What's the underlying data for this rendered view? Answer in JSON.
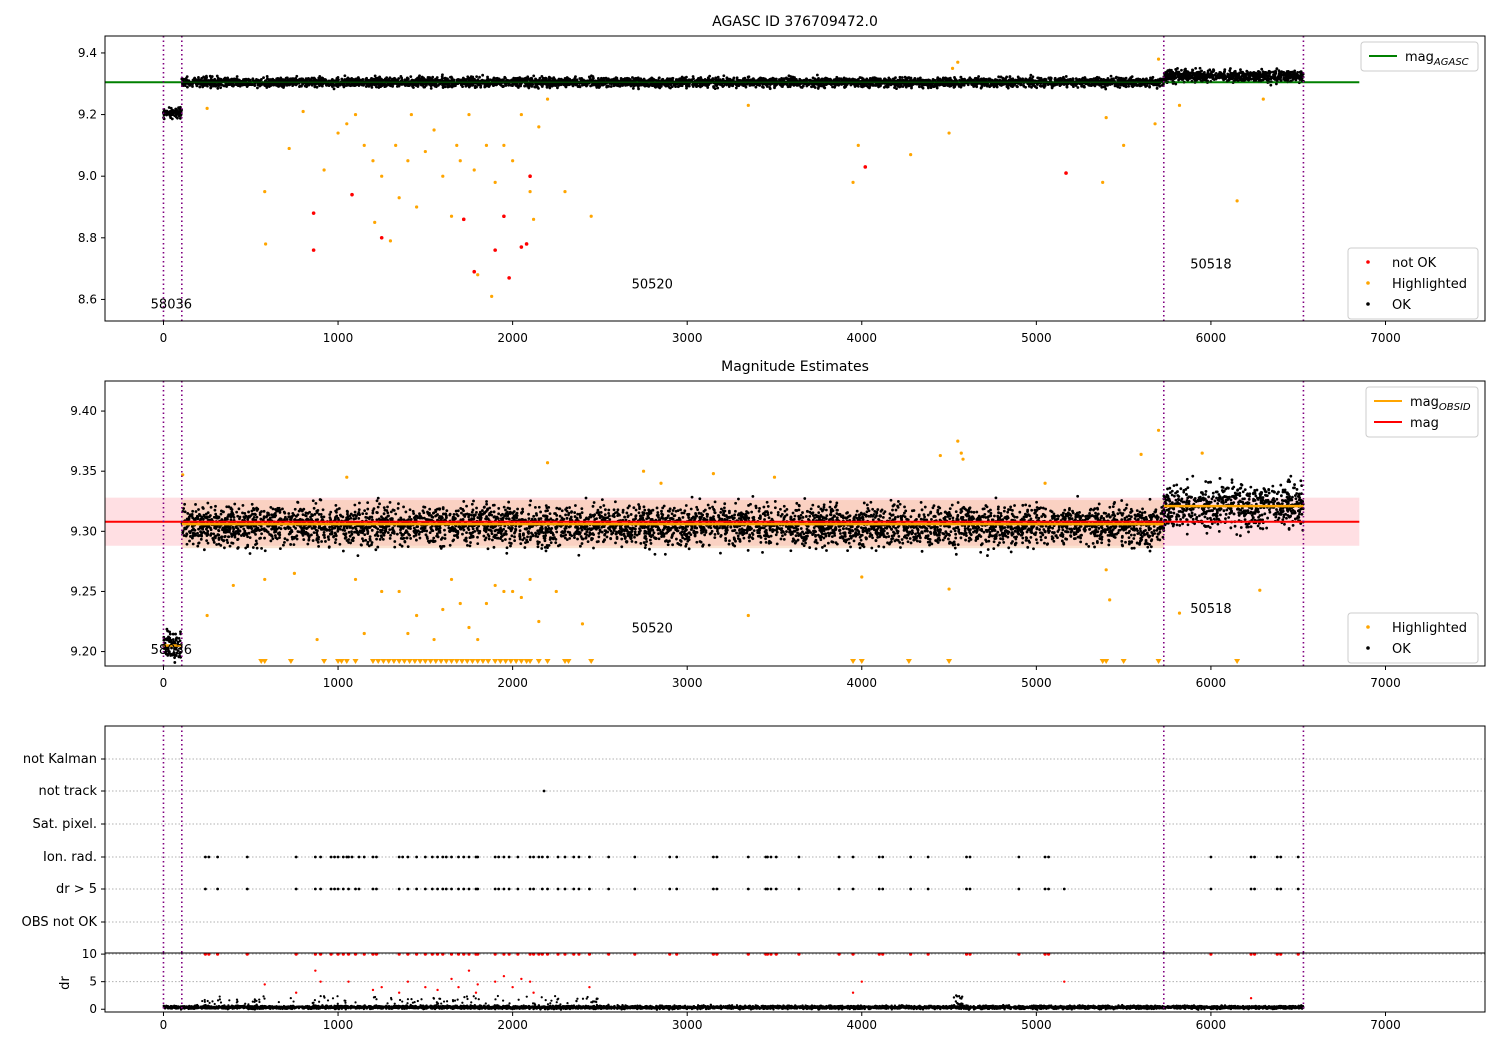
{
  "chart_data": [
    {
      "type": "scatter",
      "title": "AGASC ID 376709472.0",
      "xlabel": "",
      "ylabel": "",
      "xlim": [
        -335,
        7570
      ],
      "ylim": [
        8.53,
        9.455
      ],
      "xticks": [
        0,
        1000,
        2000,
        3000,
        4000,
        5000,
        6000,
        7000
      ],
      "yticks": [
        8.6,
        8.8,
        9.0,
        9.2,
        9.4
      ],
      "ytick_labels": [
        "8.6",
        "8.8",
        "9.0",
        "9.2",
        "9.4"
      ],
      "obsid_boundaries": [
        0,
        105,
        5730,
        6530
      ],
      "obsid_labels": [
        {
          "text": "58036",
          "x": 45,
          "y": 8.57
        },
        {
          "text": "50520",
          "x": 2800,
          "y": 8.635
        },
        {
          "text": "50518",
          "x": 6000,
          "y": 8.7
        }
      ],
      "reference_lines": [
        {
          "name": "mag_AGASC",
          "y": 9.305,
          "x0": -335,
          "x1": 6850,
          "color": "#008000"
        }
      ],
      "legend": {
        "position": "top-right",
        "entries": [
          {
            "label": "mag",
            "sub": "AGASC",
            "color": "#008000",
            "kind": "line"
          }
        ]
      },
      "legend2": {
        "position": "bottom-right",
        "entries": [
          {
            "label": "not OK",
            "color": "#ff0000",
            "kind": "dot"
          },
          {
            "label": "Highlighted",
            "color": "#ffa500",
            "kind": "dot"
          },
          {
            "label": "OK",
            "color": "#000000",
            "kind": "dot"
          }
        ]
      },
      "ok_series": {
        "name": "OK",
        "color": "#000000",
        "segments": [
          {
            "x0": 0,
            "x1": 105,
            "center": 9.205,
            "spread": 0.012
          },
          {
            "x0": 105,
            "x1": 5730,
            "center": 9.305,
            "spread": 0.013
          },
          {
            "x0": 5730,
            "x1": 6530,
            "center": 9.325,
            "spread": 0.016
          }
        ]
      },
      "highlighted_points": [
        [
          250,
          9.22
        ],
        [
          580,
          8.95
        ],
        [
          585,
          8.78
        ],
        [
          720,
          9.09
        ],
        [
          800,
          9.21
        ],
        [
          920,
          9.02
        ],
        [
          1000,
          9.14
        ],
        [
          1050,
          9.17
        ],
        [
          1100,
          9.2
        ],
        [
          1150,
          9.1
        ],
        [
          1200,
          9.05
        ],
        [
          1210,
          8.85
        ],
        [
          1250,
          9.0
        ],
        [
          1300,
          8.79
        ],
        [
          1330,
          9.1
        ],
        [
          1350,
          8.93
        ],
        [
          1400,
          9.05
        ],
        [
          1420,
          9.2
        ],
        [
          1450,
          8.9
        ],
        [
          1500,
          9.08
        ],
        [
          1550,
          9.15
        ],
        [
          1600,
          9.0
        ],
        [
          1650,
          8.87
        ],
        [
          1680,
          9.1
        ],
        [
          1700,
          9.05
        ],
        [
          1750,
          9.2
        ],
        [
          1780,
          9.02
        ],
        [
          1800,
          8.68
        ],
        [
          1850,
          9.1
        ],
        [
          1880,
          8.61
        ],
        [
          1900,
          8.98
        ],
        [
          1950,
          9.1
        ],
        [
          2000,
          9.05
        ],
        [
          2050,
          9.2
        ],
        [
          2100,
          8.95
        ],
        [
          2120,
          8.86
        ],
        [
          2150,
          9.16
        ],
        [
          2200,
          9.25
        ],
        [
          2300,
          8.95
        ],
        [
          2450,
          8.87
        ],
        [
          3350,
          9.23
        ],
        [
          3950,
          8.98
        ],
        [
          3980,
          9.1
        ],
        [
          4280,
          9.07
        ],
        [
          4500,
          9.14
        ],
        [
          4520,
          9.35
        ],
        [
          4550,
          9.37
        ],
        [
          5380,
          8.98
        ],
        [
          5400,
          9.19
        ],
        [
          5500,
          9.1
        ],
        [
          5680,
          9.17
        ],
        [
          5700,
          9.38
        ],
        [
          5820,
          9.23
        ],
        [
          6150,
          8.92
        ],
        [
          6300,
          9.25
        ]
      ],
      "not_ok_points": [
        [
          860,
          8.88
        ],
        [
          860,
          8.76
        ],
        [
          1080,
          8.94
        ],
        [
          1250,
          8.8
        ],
        [
          1720,
          8.86
        ],
        [
          1780,
          8.69
        ],
        [
          1900,
          8.76
        ],
        [
          1950,
          8.87
        ],
        [
          1980,
          8.67
        ],
        [
          2050,
          8.77
        ],
        [
          2080,
          8.78
        ],
        [
          2100,
          9.0
        ],
        [
          4020,
          9.03
        ],
        [
          5170,
          9.01
        ]
      ]
    },
    {
      "type": "scatter",
      "title": "Magnitude Estimates",
      "xlabel": "",
      "ylabel": "",
      "xlim": [
        -335,
        7570
      ],
      "ylim": [
        9.188,
        9.425
      ],
      "xticks": [
        0,
        1000,
        2000,
        3000,
        4000,
        5000,
        6000,
        7000
      ],
      "yticks": [
        9.2,
        9.25,
        9.3,
        9.35,
        9.4
      ],
      "ytick_labels": [
        "9.20",
        "9.25",
        "9.30",
        "9.35",
        "9.40"
      ],
      "obsid_boundaries": [
        0,
        105,
        5730,
        6530
      ],
      "obsid_labels": [
        {
          "text": "58036",
          "x": 45,
          "y": 9.198
        },
        {
          "text": "50520",
          "x": 2800,
          "y": 9.216
        },
        {
          "text": "50518",
          "x": 6000,
          "y": 9.232
        }
      ],
      "reference_lines": [
        {
          "name": "mag",
          "y": 9.308,
          "x0": -335,
          "x1": 6850,
          "color": "#ff0000",
          "band": [
            9.288,
            9.328
          ],
          "band_color": "#ffc0c8"
        }
      ],
      "obsid_mag_lines": [
        {
          "x0": 0,
          "x1": 105,
          "y": 9.205,
          "color": "#ffa500"
        },
        {
          "x0": 105,
          "x1": 5730,
          "y": 9.306,
          "color": "#ffa500",
          "band": [
            9.286,
            9.326
          ],
          "band_color": "#f4c29a"
        },
        {
          "x0": 5730,
          "x1": 6530,
          "y": 9.321,
          "color": "#ffa500"
        }
      ],
      "legend": {
        "position": "top-right",
        "entries": [
          {
            "label": "mag",
            "sub": "OBSID",
            "color": "#ffa500",
            "kind": "line"
          },
          {
            "label": "mag",
            "sub": "",
            "color": "#ff0000",
            "kind": "line"
          }
        ]
      },
      "legend2": {
        "position": "bottom-right",
        "entries": [
          {
            "label": "Highlighted",
            "color": "#ffa500",
            "kind": "dot"
          },
          {
            "label": "OK",
            "color": "#000000",
            "kind": "dot"
          }
        ]
      },
      "ok_series": {
        "name": "OK",
        "color": "#000000",
        "segments": [
          {
            "x0": 0,
            "x1": 105,
            "center": 9.205,
            "spread": 0.009
          },
          {
            "x0": 105,
            "x1": 5730,
            "center": 9.305,
            "spread": 0.014
          },
          {
            "x0": 5730,
            "x1": 6530,
            "center": 9.321,
            "spread": 0.016
          }
        ]
      },
      "highlighted_points": [
        [
          110,
          9.347
        ],
        [
          250,
          9.23
        ],
        [
          400,
          9.255
        ],
        [
          580,
          9.26
        ],
        [
          750,
          9.265
        ],
        [
          880,
          9.21
        ],
        [
          1050,
          9.345
        ],
        [
          1100,
          9.26
        ],
        [
          1150,
          9.215
        ],
        [
          1250,
          9.25
        ],
        [
          1350,
          9.25
        ],
        [
          1400,
          9.215
        ],
        [
          1450,
          9.23
        ],
        [
          1550,
          9.21
        ],
        [
          1600,
          9.235
        ],
        [
          1650,
          9.26
        ],
        [
          1700,
          9.24
        ],
        [
          1750,
          9.22
        ],
        [
          1800,
          9.21
        ],
        [
          1850,
          9.24
        ],
        [
          1900,
          9.255
        ],
        [
          1950,
          9.25
        ],
        [
          2000,
          9.25
        ],
        [
          2050,
          9.245
        ],
        [
          2100,
          9.26
        ],
        [
          2150,
          9.225
        ],
        [
          2200,
          9.357
        ],
        [
          2250,
          9.25
        ],
        [
          2400,
          9.223
        ],
        [
          2750,
          9.35
        ],
        [
          2850,
          9.34
        ],
        [
          3150,
          9.348
        ],
        [
          3350,
          9.23
        ],
        [
          3500,
          9.345
        ],
        [
          4000,
          9.262
        ],
        [
          4450,
          9.363
        ],
        [
          4500,
          9.252
        ],
        [
          4550,
          9.375
        ],
        [
          4570,
          9.365
        ],
        [
          4580,
          9.36
        ],
        [
          5050,
          9.34
        ],
        [
          5400,
          9.268
        ],
        [
          5420,
          9.243
        ],
        [
          5600,
          9.364
        ],
        [
          5700,
          9.384
        ],
        [
          5820,
          9.232
        ],
        [
          5950,
          9.365
        ],
        [
          6280,
          9.251
        ]
      ],
      "below_range_markers": [
        560,
        580,
        730,
        920,
        1000,
        1020,
        1050,
        1100,
        1200,
        1230,
        1260,
        1290,
        1320,
        1350,
        1380,
        1410,
        1440,
        1470,
        1500,
        1530,
        1560,
        1590,
        1620,
        1650,
        1680,
        1710,
        1740,
        1770,
        1800,
        1830,
        1860,
        1900,
        1930,
        1960,
        1990,
        2020,
        2050,
        2080,
        2100,
        2150,
        2200,
        2300,
        2320,
        2450,
        3950,
        4000,
        4270,
        4500,
        5380,
        5400,
        5500,
        5700,
        6150
      ]
    },
    {
      "type": "scatter",
      "title": "",
      "xlabel": "",
      "ylabel": "",
      "xlim": [
        -335,
        7570
      ],
      "xticks": [
        0,
        1000,
        2000,
        3000,
        4000,
        5000,
        6000,
        7000
      ],
      "obsid_boundaries": [
        0,
        105,
        5730,
        6530
      ],
      "flag_rows": [
        "not Kalman",
        "not track",
        "Sat. pixel.",
        "Ion. rad.",
        "dr > 5",
        "OBS not OK"
      ],
      "flag_points": {
        "not track": [
          2180
        ],
        "Ion. rad.": [
          240,
          260,
          310,
          480,
          760,
          870,
          900,
          960,
          980,
          1000,
          1030,
          1050,
          1060,
          1080,
          1120,
          1150,
          1200,
          1220,
          1350,
          1370,
          1400,
          1450,
          1500,
          1540,
          1570,
          1600,
          1620,
          1650,
          1690,
          1720,
          1750,
          1790,
          1800,
          1900,
          1920,
          1950,
          1980,
          2030,
          2100,
          2120,
          2150,
          2170,
          2200,
          2260,
          2300,
          2350,
          2380,
          2440,
          2550,
          2700,
          2900,
          2940,
          3150,
          3170,
          3350,
          3450,
          3460,
          3480,
          3510,
          3640,
          3870,
          3950,
          4100,
          4120,
          4280,
          4380,
          4600,
          4620,
          4900,
          5050,
          5070,
          6000,
          6230,
          6250,
          6380,
          6400,
          6500
        ],
        "dr > 5": [
          240,
          310,
          480,
          760,
          870,
          900,
          960,
          980,
          1000,
          1030,
          1060,
          1100,
          1120,
          1200,
          1220,
          1350,
          1400,
          1450,
          1500,
          1540,
          1570,
          1600,
          1620,
          1650,
          1690,
          1720,
          1750,
          1790,
          1800,
          1900,
          1920,
          1950,
          1980,
          2030,
          2100,
          2120,
          2170,
          2200,
          2260,
          2300,
          2350,
          2380,
          2440,
          2550,
          2700,
          2900,
          2940,
          3150,
          3170,
          3350,
          3450,
          3460,
          3480,
          3510,
          3640,
          3870,
          3950,
          4100,
          4120,
          4280,
          4380,
          4600,
          4620,
          4900,
          5050,
          5070,
          5160,
          6000,
          6230,
          6250,
          6380,
          6400,
          6500
        ]
      }
    },
    {
      "type": "scatter",
      "title": "",
      "xlabel": "",
      "ylabel": "dr",
      "xlim": [
        -335,
        7570
      ],
      "ylim": [
        -0.5,
        10.2
      ],
      "xticks": [
        0,
        1000,
        2000,
        3000,
        4000,
        5000,
        6000,
        7000
      ],
      "yticks": [
        0,
        5,
        10
      ],
      "obsid_boundaries": [
        0,
        105,
        5730,
        6530
      ],
      "ok_series": {
        "name": "OK",
        "color": "#000000",
        "segments": [
          {
            "x0": 0,
            "x1": 6530,
            "center": 0.35,
            "spread": 0.25
          }
        ]
      },
      "red_points": [
        [
          580,
          4.5
        ],
        [
          760,
          3.0
        ],
        [
          870,
          7.0
        ],
        [
          900,
          5.0
        ],
        [
          1060,
          5.0
        ],
        [
          1200,
          3.5
        ],
        [
          1250,
          4.0
        ],
        [
          1350,
          3.0
        ],
        [
          1400,
          5.0
        ],
        [
          1500,
          4.0
        ],
        [
          1570,
          3.5
        ],
        [
          1650,
          5.5
        ],
        [
          1690,
          4.0
        ],
        [
          1750,
          7.0
        ],
        [
          1790,
          3.0
        ],
        [
          1800,
          4.5
        ],
        [
          1900,
          5.0
        ],
        [
          1950,
          6.0
        ],
        [
          2000,
          4.0
        ],
        [
          2050,
          5.5
        ],
        [
          2100,
          5.0
        ],
        [
          2120,
          3.0
        ],
        [
          2440,
          4.0
        ],
        [
          3950,
          3.0
        ],
        [
          4000,
          5.0
        ],
        [
          5160,
          5.0
        ],
        [
          6230,
          2.0
        ]
      ],
      "saturated_red_x": [
        240,
        260,
        310,
        480,
        760,
        870,
        900,
        960,
        1000,
        1030,
        1060,
        1100,
        1150,
        1200,
        1220,
        1350,
        1400,
        1450,
        1500,
        1540,
        1570,
        1600,
        1650,
        1690,
        1720,
        1750,
        1790,
        1800,
        1900,
        1950,
        1980,
        2030,
        2100,
        2120,
        2150,
        2170,
        2200,
        2260,
        2300,
        2350,
        2380,
        2440,
        2550,
        2700,
        2900,
        2940,
        3150,
        3170,
        3350,
        3450,
        3460,
        3480,
        3510,
        3640,
        3870,
        3950,
        4100,
        4120,
        4280,
        4380,
        4600,
        4620,
        4900,
        5050,
        5070,
        6000,
        6230,
        6250,
        6380,
        6400,
        6500
      ]
    }
  ]
}
